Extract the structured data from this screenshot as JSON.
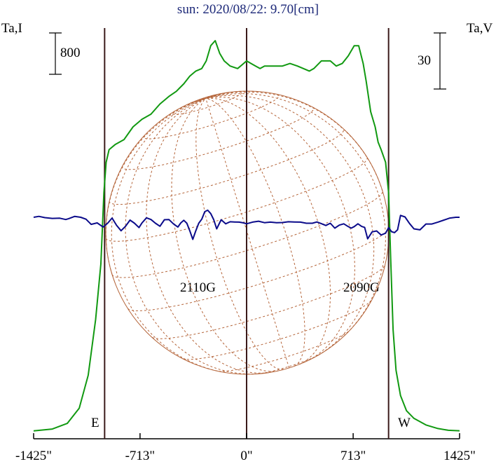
{
  "title": "sun: 2020/08/22: 9.70[cm]",
  "left_axis_label": "Ta,I",
  "right_axis_label": "Ta,V",
  "left_scale_bar_label": "800",
  "right_scale_bar_label": "30",
  "east_label": "E",
  "west_label": "W",
  "annotations": [
    "2110G",
    "2090G"
  ],
  "colors": {
    "background": "#ffffff",
    "title": "#1c2878",
    "stokes_i_curve": "#119911",
    "stokes_v_curve": "#0b0b8a",
    "solar_grid": "#b5653a",
    "limb_lines": "#3a1a1a"
  },
  "chart_data": {
    "type": "line",
    "title": "sun: 2020/08/22: 9.70[cm]",
    "xlabel": "",
    "x_tick_labels": [
      "-1425\"",
      "-713\"",
      "0\"",
      "713\"",
      "1425\""
    ],
    "x_ticks": [
      -1425,
      -713,
      0,
      713,
      1425
    ],
    "xlim": [
      -1425,
      1425
    ],
    "limb_positions": [
      -950,
      0,
      950
    ],
    "left_ylabel": "Ta,I",
    "right_ylabel": "Ta,V",
    "legend": "none",
    "grid": false,
    "series": [
      {
        "axis": "left",
        "color": "#119911",
        "x": [
          -1425,
          -1300,
          -1200,
          -1120,
          -1060,
          -1010,
          -975,
          -955,
          -940,
          -920,
          -880,
          -820,
          -760,
          -700,
          -640,
          -580,
          -520,
          -470,
          -420,
          -380,
          -340,
          -300,
          -270,
          -240,
          -210,
          -180,
          -150,
          -110,
          -60,
          -20,
          0,
          30,
          60,
          90,
          120,
          150,
          190,
          240,
          290,
          340,
          380,
          420,
          450,
          500,
          560,
          600,
          640,
          680,
          720,
          750,
          780,
          800,
          830,
          860,
          880,
          900,
          930,
          950,
          965,
          980,
          1000,
          1030,
          1070,
          1120,
          1200,
          1280,
          1350,
          1425
        ],
        "values": [
          4,
          40,
          150,
          450,
          1100,
          2200,
          3300,
          4700,
          5300,
          5550,
          5650,
          5750,
          6000,
          6150,
          6250,
          6450,
          6600,
          6700,
          6850,
          7000,
          7100,
          7150,
          7300,
          7600,
          7700,
          7450,
          7300,
          7200,
          7150,
          7250,
          7300,
          7250,
          7200,
          7150,
          7200,
          7200,
          7200,
          7200,
          7250,
          7200,
          7150,
          7100,
          7150,
          7300,
          7300,
          7200,
          7250,
          7400,
          7600,
          7600,
          7250,
          6900,
          6300,
          6000,
          5700,
          5550,
          5300,
          4700,
          3300,
          2000,
          1200,
          700,
          400,
          250,
          120,
          50,
          15,
          5
        ]
      },
      {
        "axis": "right",
        "color": "#0b0b8a",
        "x": [
          -1425,
          -1390,
          -1350,
          -1300,
          -1250,
          -1210,
          -1190,
          -1150,
          -1110,
          -1075,
          -1040,
          -1000,
          -960,
          -930,
          -900,
          -870,
          -840,
          -810,
          -780,
          -750,
          -720,
          -700,
          -670,
          -640,
          -610,
          -580,
          -550,
          -520,
          -490,
          -460,
          -440,
          -420,
          -400,
          -380,
          -360,
          -340,
          -320,
          -300,
          -280,
          -260,
          -240,
          -220,
          -200,
          -170,
          -140,
          -110,
          -80,
          -50,
          -20,
          0,
          40,
          80,
          120,
          160,
          200,
          240,
          280,
          320,
          360,
          400,
          440,
          470,
          500,
          530,
          560,
          590,
          620,
          650,
          680,
          700,
          720,
          745,
          770,
          790,
          810,
          840,
          870,
          900,
          930,
          950,
          970,
          990,
          1010,
          1030,
          1060,
          1090,
          1120,
          1160,
          1200,
          1240,
          1280,
          1320,
          1360,
          1400,
          1425
        ],
        "values": [
          0,
          0.5,
          -0.2,
          -0.6,
          -0.5,
          -1.2,
          -0.7,
          0.5,
          0,
          -1,
          -3.8,
          -3,
          -5.2,
          -3.2,
          -0.4,
          -4.3,
          -7.2,
          -4.8,
          -1.5,
          -3.2,
          -5.5,
          -3,
          -0.3,
          -1.2,
          -3.2,
          -4.8,
          -1.3,
          -1.2,
          -3.5,
          -5.2,
          -3,
          -1.6,
          -3.2,
          -7.2,
          -11.8,
          -7.2,
          -3.2,
          -1,
          3,
          3.8,
          2,
          -1.3,
          -6.2,
          -1.3,
          -3.5,
          -2.4,
          -2.5,
          -2.6,
          -3,
          -3.5,
          -2.6,
          -2.1,
          -2.9,
          -2.6,
          -2.9,
          -2.8,
          -2.4,
          -2.5,
          -2.6,
          -3.2,
          -3.2,
          -2.5,
          -3.4,
          -4.4,
          -3.2,
          -5.8,
          -4.2,
          -3.5,
          -5,
          -5.8,
          -5,
          -3.5,
          -4.9,
          -5.4,
          -11.5,
          -7.8,
          -7.3,
          -9.5,
          -8.5,
          -5.5,
          -7.7,
          -8.2,
          -6.7,
          1,
          0.2,
          -3.3,
          -6.2,
          -6.7,
          -3.6,
          -3.6,
          -2.6,
          -1.5,
          -0.4,
          0,
          0
        ]
      }
    ]
  }
}
